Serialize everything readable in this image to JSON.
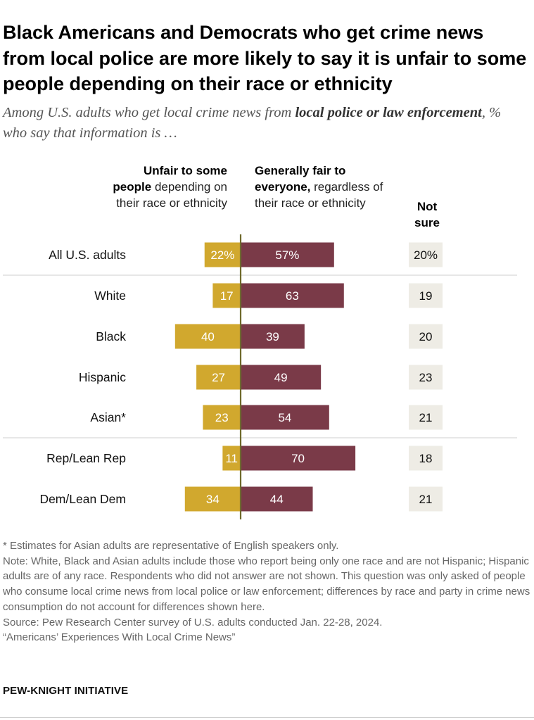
{
  "title": "Black Americans and Democrats who get crime news from local police are more likely to say it is unfair to some people depending on their race or ethnicity",
  "subtitle": {
    "part1": "Among U.S. adults who get local crime news from ",
    "emphasis": "local police or law enforcement",
    "part2": ", % who say that information is …"
  },
  "headers": {
    "unfair_bold": "Unfair to some people",
    "unfair_rest": " depending on their race or ethnicity",
    "fair_bold": "Generally fair to everyone,",
    "fair_rest": " regardless of their race or ethnicity",
    "not_sure": "Not sure"
  },
  "chart_data": {
    "type": "bar",
    "orientation": "horizontal-diverging",
    "categories": [
      "All U.S. adults",
      "White",
      "Black",
      "Hispanic",
      "Asian*",
      "Rep/Lean Rep",
      "Dem/Lean Dem"
    ],
    "value_labels": {
      "unfair": [
        "22%",
        "17",
        "40",
        "27",
        "23",
        "11",
        "34"
      ],
      "fair": [
        "57%",
        "63",
        "39",
        "49",
        "54",
        "70",
        "44"
      ],
      "not_sure": [
        "20%",
        "19",
        "20",
        "23",
        "21",
        "18",
        "21"
      ]
    },
    "series": [
      {
        "name": "Unfair to some people depending on their race or ethnicity",
        "values": [
          22,
          17,
          40,
          27,
          23,
          11,
          34
        ],
        "color": "#d1a82e"
      },
      {
        "name": "Generally fair to everyone, regardless of their race or ethnicity",
        "values": [
          57,
          63,
          39,
          49,
          54,
          70,
          44
        ],
        "color": "#7a3a48"
      },
      {
        "name": "Not sure",
        "values": [
          20,
          19,
          20,
          23,
          21,
          18,
          21
        ],
        "color": "#eeece5"
      }
    ],
    "groups": [
      [
        "All U.S. adults"
      ],
      [
        "White",
        "Black",
        "Hispanic",
        "Asian*"
      ],
      [
        "Rep/Lean Rep",
        "Dem/Lean Dem"
      ]
    ]
  },
  "footnotes": [
    "* Estimates for Asian adults are representative of English speakers only.",
    "Note: White, Black and Asian adults include those who report being only one race and are not Hispanic; Hispanic adults are of any race. Respondents who did not answer are not shown. This question was only asked of people who consume local crime news from local police or law enforcement; differences by race and party in crime news consumption do not account for differences shown here.",
    "Source: Pew Research Center survey of U.S. adults conducted Jan. 22-28, 2024.",
    "“Americans’ Experiences With Local Crime News”"
  ],
  "brand": "PEW-KNIGHT INITIATIVE"
}
